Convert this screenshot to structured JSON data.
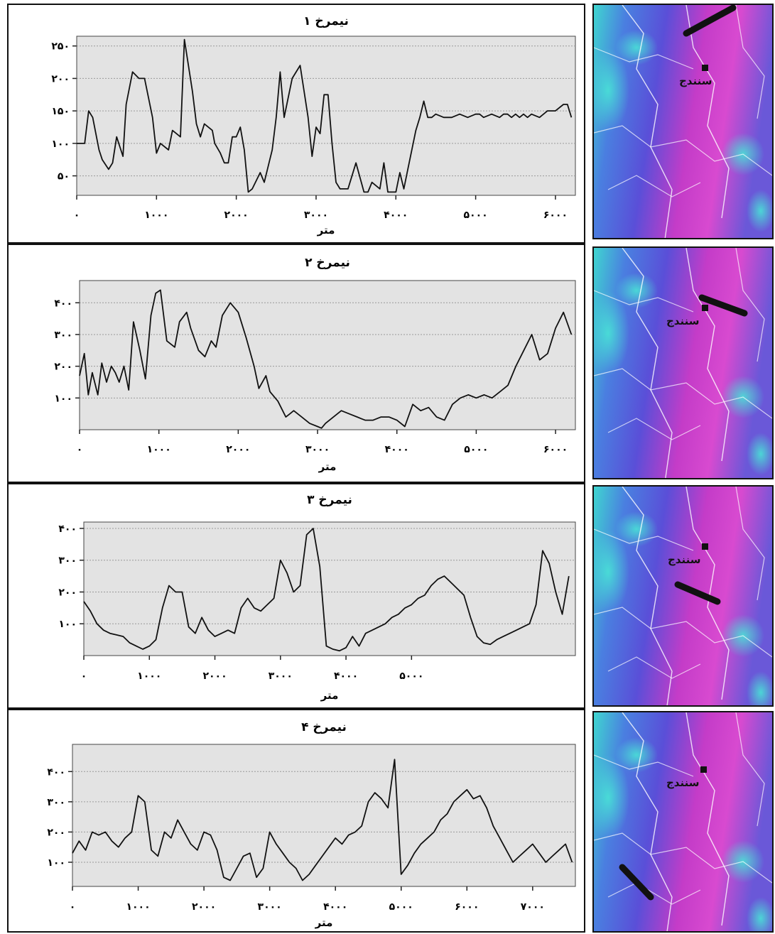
{
  "chart_data": [
    {
      "type": "line",
      "title": "نیمرخ ۱",
      "xlabel": "متر",
      "xlim": [
        0,
        6250
      ],
      "ylim": [
        20,
        265
      ],
      "x_ticks": [
        {
          "v": 0,
          "label": "۰"
        },
        {
          "v": 1000,
          "label": "۱۰۰۰"
        },
        {
          "v": 2000,
          "label": "۲۰۰۰"
        },
        {
          "v": 3000,
          "label": "۳۰۰۰"
        },
        {
          "v": 4000,
          "label": "۴۰۰۰"
        },
        {
          "v": 5000,
          "label": "۵۰۰۰"
        },
        {
          "v": 6000,
          "label": "۶۰۰۰"
        }
      ],
      "y_ticks": [
        {
          "v": 50,
          "label": "۵۰"
        },
        {
          "v": 100,
          "label": "۱۰۰"
        },
        {
          "v": 150,
          "label": "۱۵۰"
        },
        {
          "v": 200,
          "label": "۲۰۰"
        },
        {
          "v": 250,
          "label": "۲۵۰"
        }
      ],
      "grid": true,
      "x": [
        0,
        100,
        150,
        200,
        280,
        320,
        400,
        450,
        500,
        580,
        620,
        700,
        780,
        850,
        950,
        1000,
        1050,
        1150,
        1200,
        1300,
        1350,
        1450,
        1500,
        1550,
        1600,
        1700,
        1730,
        1800,
        1850,
        1900,
        1950,
        2000,
        2050,
        2100,
        2150,
        2200,
        2300,
        2350,
        2450,
        2500,
        2550,
        2600,
        2700,
        2800,
        2900,
        2950,
        3000,
        3050,
        3100,
        3150,
        3200,
        3250,
        3300,
        3400,
        3500,
        3600,
        3650,
        3700,
        3800,
        3850,
        3900,
        4000,
        4050,
        4100,
        4150,
        4250,
        4300,
        4350,
        4400,
        4450,
        4500,
        4600,
        4700,
        4800,
        4900,
        5000,
        5050,
        5100,
        5200,
        5300,
        5350,
        5400,
        5450,
        5500,
        5550,
        5600,
        5650,
        5700,
        5800,
        5900,
        6000,
        6100,
        6150,
        6200
      ],
      "y": [
        100,
        100,
        150,
        140,
        90,
        75,
        60,
        70,
        110,
        80,
        160,
        210,
        200,
        200,
        140,
        85,
        100,
        90,
        120,
        110,
        260,
        180,
        130,
        110,
        130,
        120,
        100,
        85,
        70,
        70,
        110,
        110,
        125,
        90,
        25,
        30,
        55,
        40,
        90,
        140,
        210,
        140,
        200,
        220,
        140,
        80,
        125,
        115,
        175,
        175,
        100,
        40,
        30,
        30,
        70,
        25,
        25,
        40,
        30,
        70,
        25,
        25,
        55,
        30,
        60,
        120,
        140,
        165,
        140,
        140,
        145,
        140,
        140,
        145,
        140,
        145,
        145,
        140,
        145,
        140,
        145,
        145,
        140,
        145,
        140,
        145,
        140,
        145,
        140,
        150,
        150,
        160,
        160,
        140
      ]
    },
    {
      "type": "line",
      "title": "نیمرخ ۲",
      "xlabel": "متر",
      "xlim": [
        0,
        6250
      ],
      "ylim": [
        0,
        470
      ],
      "x_ticks": [
        {
          "v": 0,
          "label": "۰"
        },
        {
          "v": 1000,
          "label": "۱۰۰۰"
        },
        {
          "v": 2000,
          "label": "۲۰۰۰"
        },
        {
          "v": 3000,
          "label": "۳۰۰۰"
        },
        {
          "v": 4000,
          "label": "۴۰۰۰"
        },
        {
          "v": 5000,
          "label": "۵۰۰۰"
        },
        {
          "v": 6000,
          "label": "۶۰۰۰"
        }
      ],
      "y_ticks": [
        {
          "v": 100,
          "label": "۱۰۰"
        },
        {
          "v": 200,
          "label": "۲۰۰"
        },
        {
          "v": 300,
          "label": "۳۰۰"
        },
        {
          "v": 400,
          "label": "۴۰۰"
        }
      ],
      "grid": true,
      "x": [
        0,
        60,
        110,
        160,
        230,
        280,
        340,
        400,
        450,
        500,
        560,
        620,
        680,
        760,
        830,
        900,
        960,
        1020,
        1100,
        1200,
        1260,
        1350,
        1400,
        1500,
        1580,
        1660,
        1720,
        1800,
        1900,
        2000,
        2100,
        2200,
        2260,
        2350,
        2400,
        2500,
        2560,
        2600,
        2650,
        2700,
        2800,
        2900,
        3000,
        3050,
        3100,
        3200,
        3300,
        3400,
        3500,
        3550,
        3600,
        3700,
        3800,
        3900,
        4000,
        4100,
        4200,
        4300,
        4400,
        4500,
        4600,
        4700,
        4800,
        4900,
        5000,
        5100,
        5200,
        5300,
        5400,
        5500,
        5600,
        5700,
        5800,
        5900,
        6000,
        6100,
        6200
      ],
      "y": [
        170,
        240,
        110,
        180,
        110,
        210,
        150,
        200,
        180,
        150,
        200,
        125,
        340,
        250,
        160,
        360,
        430,
        440,
        280,
        260,
        340,
        370,
        320,
        250,
        230,
        280,
        260,
        360,
        400,
        370,
        290,
        200,
        130,
        170,
        120,
        90,
        60,
        40,
        50,
        60,
        40,
        20,
        10,
        5,
        20,
        40,
        60,
        50,
        40,
        35,
        30,
        30,
        40,
        40,
        30,
        10,
        80,
        60,
        70,
        40,
        30,
        80,
        100,
        110,
        100,
        110,
        100,
        120,
        140,
        200,
        250,
        300,
        220,
        240,
        320,
        370,
        300
      ]
    },
    {
      "type": "line",
      "title": "نیمرخ ۳",
      "xlabel": "متر",
      "xlim": [
        0,
        7500
      ],
      "ylim": [
        0,
        420
      ],
      "x_ticks": [
        {
          "v": 0,
          "label": "۰"
        },
        {
          "v": 1000,
          "label": "۱۰۰۰"
        },
        {
          "v": 2000,
          "label": "۲۰۰۰"
        },
        {
          "v": 3000,
          "label": "۳۰۰۰"
        },
        {
          "v": 4000,
          "label": "۴۰۰۰"
        },
        {
          "v": 5000,
          "label": "۵۰۰۰"
        }
      ],
      "y_ticks": [
        {
          "v": 100,
          "label": "۱۰۰"
        },
        {
          "v": 200,
          "label": "۲۰۰"
        },
        {
          "v": 300,
          "label": "۳۰۰"
        },
        {
          "v": 400,
          "label": "۴۰۰"
        }
      ],
      "grid": true,
      "x": [
        0,
        100,
        200,
        300,
        400,
        500,
        600,
        700,
        800,
        900,
        1000,
        1100,
        1200,
        1300,
        1400,
        1500,
        1600,
        1700,
        1800,
        1900,
        2000,
        2100,
        2200,
        2300,
        2400,
        2500,
        2600,
        2700,
        2800,
        2900,
        3000,
        3100,
        3200,
        3300,
        3400,
        3500,
        3600,
        3700,
        3800,
        3900,
        4000,
        4100,
        4200,
        4300,
        4400,
        4500,
        4600,
        4700,
        4800,
        4900,
        5000,
        5100,
        5200,
        5300,
        5400,
        5500,
        5600,
        5700,
        5800,
        5900,
        6000,
        6100,
        6200,
        6300,
        6400,
        6500,
        6600,
        6700,
        6800,
        6900,
        7000,
        7100,
        7200,
        7300,
        7400
      ],
      "y": [
        170,
        140,
        100,
        80,
        70,
        65,
        60,
        40,
        30,
        20,
        30,
        50,
        150,
        220,
        200,
        200,
        90,
        70,
        120,
        80,
        60,
        70,
        80,
        70,
        150,
        180,
        150,
        140,
        160,
        180,
        300,
        260,
        200,
        220,
        380,
        400,
        280,
        30,
        20,
        15,
        25,
        60,
        30,
        70,
        80,
        90,
        100,
        120,
        130,
        150,
        160,
        180,
        190,
        220,
        240,
        250,
        230,
        210,
        190,
        120,
        60,
        40,
        35,
        50,
        60,
        70,
        80,
        90,
        100,
        160,
        330,
        290,
        200,
        130,
        250
      ]
    },
    {
      "type": "line",
      "title": "نیمرخ ۴",
      "xlabel": "متر",
      "xlim": [
        0,
        7650
      ],
      "ylim": [
        20,
        490
      ],
      "x_ticks": [
        {
          "v": 0,
          "label": "۰"
        },
        {
          "v": 1000,
          "label": "۱۰۰۰"
        },
        {
          "v": 2000,
          "label": "۲۰۰۰"
        },
        {
          "v": 3000,
          "label": "۳۰۰۰"
        },
        {
          "v": 4000,
          "label": "۴۰۰۰"
        },
        {
          "v": 5000,
          "label": "۵۰۰۰"
        },
        {
          "v": 6000,
          "label": "۶۰۰۰"
        },
        {
          "v": 7000,
          "label": "۷۰۰۰"
        }
      ],
      "y_ticks": [
        {
          "v": 100,
          "label": "۱۰۰"
        },
        {
          "v": 200,
          "label": "۲۰۰"
        },
        {
          "v": 300,
          "label": "۳۰۰"
        },
        {
          "v": 400,
          "label": "۴۰۰"
        }
      ],
      "grid": true,
      "x": [
        0,
        100,
        200,
        300,
        400,
        500,
        600,
        700,
        800,
        900,
        1000,
        1100,
        1200,
        1300,
        1400,
        1500,
        1600,
        1700,
        1800,
        1900,
        2000,
        2100,
        2200,
        2300,
        2400,
        2500,
        2600,
        2700,
        2800,
        2900,
        3000,
        3100,
        3200,
        3300,
        3400,
        3500,
        3600,
        3700,
        3800,
        3900,
        4000,
        4100,
        4200,
        4300,
        4400,
        4500,
        4600,
        4700,
        4800,
        4900,
        5000,
        5100,
        5200,
        5300,
        5400,
        5500,
        5600,
        5700,
        5800,
        5900,
        6000,
        6100,
        6200,
        6300,
        6400,
        6500,
        6600,
        6700,
        6800,
        6900,
        7000,
        7100,
        7200,
        7300,
        7400,
        7500,
        7600
      ],
      "y": [
        130,
        170,
        140,
        200,
        190,
        200,
        170,
        150,
        180,
        200,
        320,
        300,
        140,
        120,
        200,
        180,
        240,
        200,
        160,
        140,
        200,
        190,
        140,
        50,
        40,
        80,
        120,
        130,
        50,
        80,
        200,
        160,
        130,
        100,
        80,
        40,
        60,
        90,
        120,
        150,
        180,
        160,
        190,
        200,
        220,
        300,
        330,
        310,
        280,
        440,
        60,
        90,
        130,
        160,
        180,
        200,
        240,
        260,
        300,
        320,
        340,
        310,
        320,
        280,
        220,
        180,
        140,
        100,
        120,
        140,
        160,
        130,
        100,
        120,
        140,
        160,
        100
      ]
    }
  ],
  "maps": {
    "city_label": "سنندج"
  },
  "colors": {
    "line": "#111111",
    "plot_bg": "#e3e3e3",
    "gridline": "#9a9a9a",
    "map_magenta": "#d23cc8",
    "map_blue": "#4a55d6",
    "map_cyan": "#3fd6d0"
  }
}
